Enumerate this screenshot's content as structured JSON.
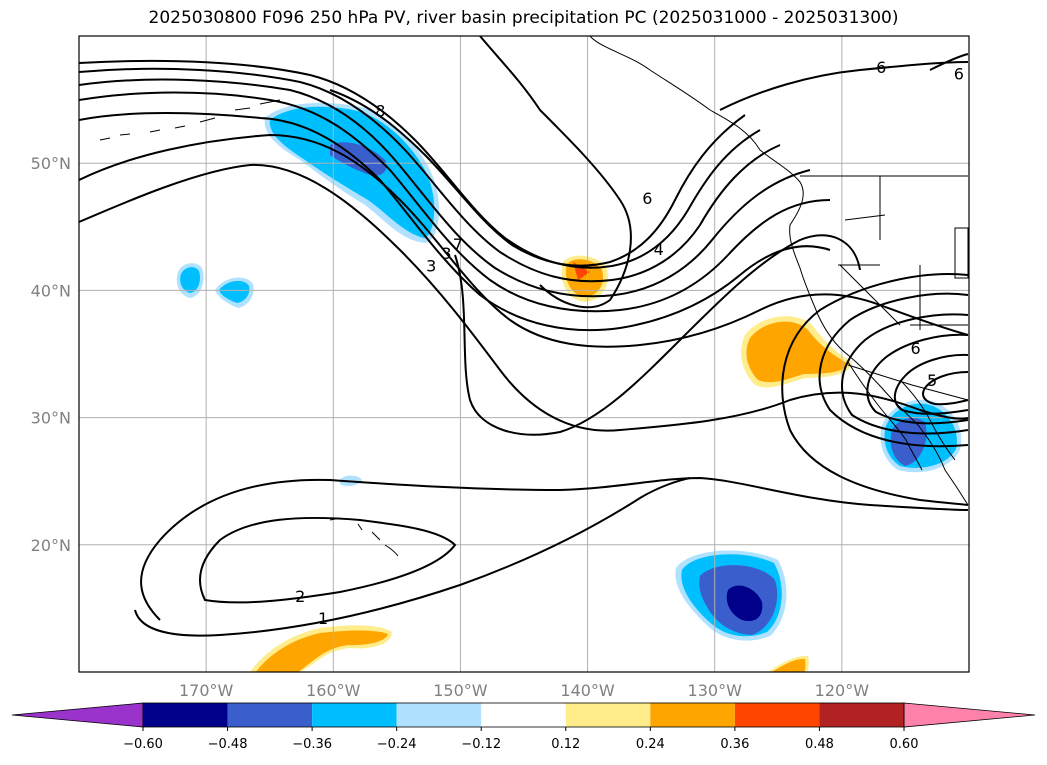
{
  "title": "2025030800 F096 250 hPa PV, river basin precipitation PC (2025031000 - 2025031300)",
  "map": {
    "lon_range": [
      -180,
      -110
    ],
    "lat_range": [
      10,
      60
    ],
    "gridlines": true,
    "lat_ticks": [
      {
        "value": 20,
        "label": "20°N"
      },
      {
        "value": 30,
        "label": "30°N"
      },
      {
        "value": 40,
        "label": "40°N"
      },
      {
        "value": 50,
        "label": "50°N"
      }
    ],
    "lon_ticks": [
      {
        "value": -170,
        "label": "170°W"
      },
      {
        "value": -160,
        "label": "160°W"
      },
      {
        "value": -150,
        "label": "150°W"
      },
      {
        "value": -140,
        "label": "140°W"
      },
      {
        "value": -130,
        "label": "130°W"
      },
      {
        "value": -120,
        "label": "120°W"
      }
    ],
    "contour_labels": [
      {
        "text": "8",
        "lon": -156.3,
        "lat": 54.0
      },
      {
        "text": "7",
        "lon": -150.2,
        "lat": 43.5
      },
      {
        "text": "3",
        "lon": -151.1,
        "lat": 42.8
      },
      {
        "text": "3",
        "lon": -152.3,
        "lat": 41.8
      },
      {
        "text": "6",
        "lon": -135.3,
        "lat": 47.1
      },
      {
        "text": "4",
        "lon": -134.4,
        "lat": 43.1
      },
      {
        "text": "6",
        "lon": -116.9,
        "lat": 57.4
      },
      {
        "text": "6",
        "lon": -110.8,
        "lat": 56.9
      },
      {
        "text": "6",
        "lon": -114.2,
        "lat": 35.3
      },
      {
        "text": "5",
        "lon": -112.9,
        "lat": 32.8
      },
      {
        "text": "2",
        "lon": -162.6,
        "lat": 15.8
      },
      {
        "text": "1",
        "lon": -160.8,
        "lat": 14.1
      }
    ]
  },
  "colorbar": {
    "tick_labels": [
      "−0.60",
      "−0.48",
      "−0.36",
      "−0.24",
      "−0.12",
      "0.12",
      "0.24",
      "0.36",
      "0.48",
      "0.60"
    ],
    "colors": [
      "#9933cc",
      "#00008b",
      "#3a5fcd",
      "#00bfff",
      "#b0e2ff",
      "#ffffff",
      "#ffec8b",
      "#ffa500",
      "#ff4500",
      "#b22222",
      "#ff82ab"
    ]
  }
}
